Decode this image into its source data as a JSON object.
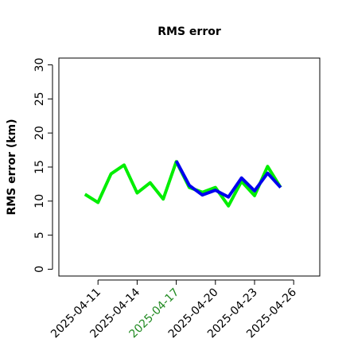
{
  "chart_data": {
    "type": "line",
    "title": "RMS error",
    "y_label": "RMS error (km)",
    "x": [
      "2025-04-10",
      "2025-04-11",
      "2025-04-12",
      "2025-04-13",
      "2025-04-14",
      "2025-04-15",
      "2025-04-16",
      "2025-04-17",
      "2025-04-18",
      "2025-04-19",
      "2025-04-20",
      "2025-04-21",
      "2025-04-22",
      "2025-04-23",
      "2025-04-24",
      "2025-04-25"
    ],
    "series": [
      {
        "color": "#00ee00",
        "values": [
          11.0,
          9.8,
          14.0,
          15.3,
          11.2,
          12.7,
          10.3,
          15.8,
          12.0,
          11.3,
          12.0,
          9.3,
          12.9,
          10.8,
          15.1,
          12.0
        ]
      },
      {
        "color": "#0000ee",
        "values": [
          null,
          null,
          null,
          null,
          null,
          null,
          null,
          15.9,
          12.3,
          10.9,
          11.6,
          10.6,
          13.4,
          11.5,
          14.1,
          12.0
        ]
      }
    ],
    "xlim": [
      "2025-04-08",
      "2025-04-28"
    ],
    "xticks": [
      "2025-04-11",
      "2025-04-14",
      "2025-04-17",
      "2025-04-20",
      "2025-04-23",
      "2025-04-26"
    ],
    "xtick_colors": [
      "#000000",
      "#000000",
      "#228b22",
      "#000000",
      "#000000",
      "#000000"
    ],
    "ylim": [
      -1,
      31
    ],
    "yticks": [
      0,
      5,
      10,
      15,
      20,
      25,
      30
    ]
  }
}
